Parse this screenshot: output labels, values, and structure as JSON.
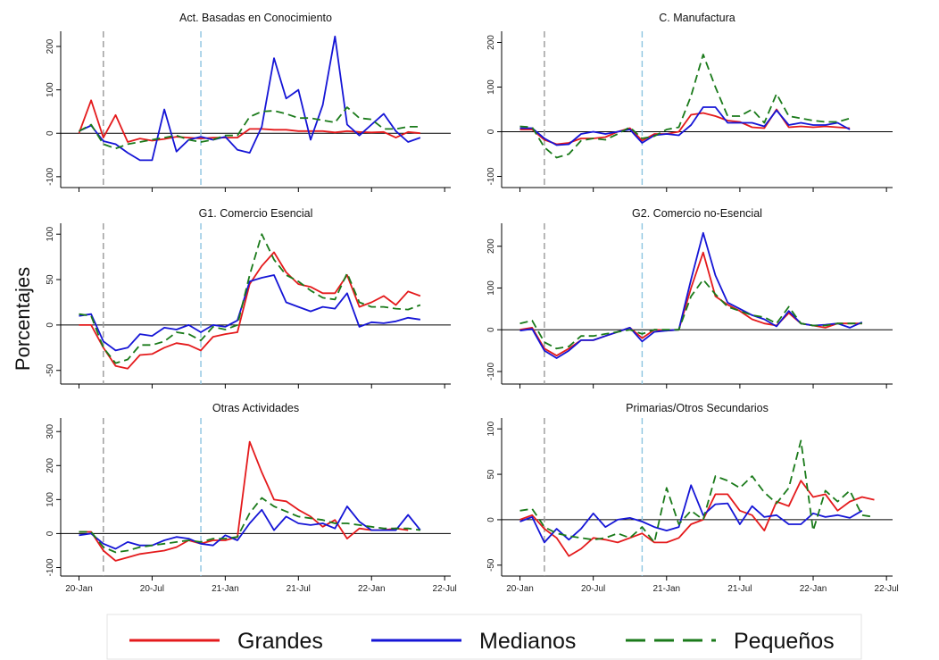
{
  "ylabel": "Porcentajes",
  "x_tick_labels": [
    "20-Jan",
    "20-Jul",
    "21-Jan",
    "21-Jul",
    "22-Jan",
    "22-Jul"
  ],
  "legend": [
    {
      "name": "Grandes",
      "color": "#e41a1c",
      "dash": "solid"
    },
    {
      "name": "Medianos",
      "color": "#1515d6",
      "dash": "solid"
    },
    {
      "name": "Pequeños",
      "color": "#1a7a1a",
      "dash": "dashed"
    }
  ],
  "reference_lines": [
    {
      "x": "2020-03",
      "color": "#999999",
      "style": "dashed"
    },
    {
      "x": "2020-11",
      "color": "#8cc4e0",
      "style": "dashed"
    }
  ],
  "chart_data": [
    {
      "type": "line",
      "title": "Act. Basadas en Conocimiento",
      "x_start": "2020-01",
      "x_step": "month",
      "yticks": [
        -100,
        0,
        100,
        200
      ],
      "ylim": [
        -125,
        235
      ],
      "series": [
        {
          "name": "Grandes",
          "values": [
            0,
            76,
            -10,
            42,
            -20,
            -12,
            -17,
            -13,
            -8,
            -10,
            -12,
            -10,
            -10,
            -10,
            10,
            10,
            8,
            8,
            5,
            5,
            5,
            2,
            5,
            3,
            2,
            3,
            -10,
            3,
            0
          ]
        },
        {
          "name": "Medianos",
          "values": [
            5,
            18,
            -18,
            -25,
            -45,
            -62,
            -62,
            55,
            -42,
            -15,
            -8,
            -15,
            -8,
            -38,
            -45,
            15,
            173,
            80,
            100,
            -15,
            65,
            223,
            20,
            -5,
            20,
            45,
            5,
            -20,
            -10
          ]
        },
        {
          "name": "Pequeños",
          "values": [
            5,
            20,
            -25,
            -35,
            -25,
            -20,
            -15,
            -10,
            -5,
            -15,
            -20,
            -15,
            -5,
            -5,
            38,
            50,
            52,
            45,
            35,
            35,
            30,
            25,
            60,
            35,
            32,
            10,
            10,
            15,
            15
          ]
        }
      ]
    },
    {
      "type": "line",
      "title": "C. Manufactura",
      "x_start": "2020-01",
      "x_step": "month",
      "yticks": [
        -100,
        0,
        100,
        200
      ],
      "ylim": [
        -125,
        225
      ],
      "series": [
        {
          "name": "Grandes",
          "values": [
            5,
            5,
            -18,
            -28,
            -25,
            -15,
            -15,
            -12,
            0,
            8,
            -20,
            -5,
            -5,
            0,
            38,
            42,
            35,
            25,
            22,
            10,
            8,
            50,
            10,
            12,
            10,
            12,
            10,
            8
          ]
        },
        {
          "name": "Medianos",
          "values": [
            8,
            8,
            -15,
            -30,
            -28,
            -5,
            0,
            -5,
            0,
            5,
            -25,
            -8,
            -5,
            -8,
            15,
            55,
            55,
            20,
            20,
            20,
            12,
            48,
            15,
            20,
            15,
            15,
            20,
            5
          ]
        },
        {
          "name": "Pequeños",
          "values": [
            12,
            10,
            -35,
            -58,
            -50,
            -20,
            -15,
            -18,
            -5,
            10,
            -15,
            -10,
            5,
            10,
            80,
            173,
            100,
            35,
            35,
            50,
            20,
            85,
            35,
            30,
            25,
            22,
            22,
            30
          ]
        }
      ]
    },
    {
      "type": "line",
      "title": "G1. Comercio Esencial",
      "x_start": "2020-01",
      "x_step": "month",
      "yticks": [
        -50,
        0,
        50,
        100
      ],
      "ylim": [
        -65,
        112
      ],
      "series": [
        {
          "name": "Grandes",
          "values": [
            0,
            0,
            -25,
            -45,
            -48,
            -33,
            -32,
            -25,
            -20,
            -22,
            -28,
            -13,
            -10,
            -8,
            45,
            65,
            80,
            58,
            45,
            42,
            35,
            35,
            55,
            20,
            25,
            32,
            22,
            37,
            32
          ]
        },
        {
          "name": "Medianos",
          "values": [
            10,
            12,
            -18,
            -28,
            -25,
            -10,
            -12,
            -3,
            -5,
            0,
            -8,
            0,
            -2,
            5,
            48,
            52,
            55,
            25,
            20,
            15,
            20,
            18,
            35,
            -2,
            3,
            2,
            4,
            8,
            6
          ]
        },
        {
          "name": "Pequeños",
          "values": [
            12,
            10,
            -25,
            -42,
            -38,
            -22,
            -22,
            -18,
            -8,
            -10,
            -17,
            -2,
            -5,
            0,
            55,
            100,
            72,
            55,
            48,
            38,
            30,
            28,
            57,
            25,
            20,
            20,
            18,
            17,
            22
          ]
        }
      ]
    },
    {
      "type": "line",
      "title": "G2. Comercio no-Esencial",
      "x_start": "2020-01",
      "x_step": "month",
      "yticks": [
        -100,
        0,
        100,
        200
      ],
      "ylim": [
        -130,
        255
      ],
      "series": [
        {
          "name": "Grandes",
          "values": [
            0,
            5,
            -45,
            -62,
            -45,
            -25,
            -25,
            -15,
            -5,
            5,
            -20,
            0,
            -2,
            0,
            100,
            185,
            80,
            60,
            45,
            25,
            15,
            10,
            40,
            15,
            10,
            5,
            15,
            15,
            15
          ]
        },
        {
          "name": "Medianos",
          "values": [
            -2,
            2,
            -50,
            -68,
            -50,
            -25,
            -25,
            -15,
            -5,
            5,
            -28,
            -5,
            -2,
            0,
            120,
            232,
            130,
            65,
            50,
            35,
            25,
            8,
            45,
            15,
            10,
            12,
            15,
            5,
            18
          ]
        },
        {
          "name": "Pequeños",
          "values": [
            15,
            22,
            -30,
            -45,
            -40,
            -15,
            -15,
            -10,
            -5,
            0,
            -10,
            0,
            0,
            0,
            80,
            120,
            85,
            55,
            45,
            35,
            30,
            15,
            55,
            15,
            10,
            10,
            15,
            15,
            15
          ]
        }
      ]
    },
    {
      "type": "line",
      "title": "Otras Actividades",
      "x_start": "2020-01",
      "x_step": "month",
      "yticks": [
        -100,
        0,
        100,
        200,
        300
      ],
      "ylim": [
        -125,
        340
      ],
      "series": [
        {
          "name": "Grandes",
          "values": [
            5,
            5,
            -50,
            -80,
            -70,
            -60,
            -55,
            -50,
            -40,
            -20,
            -30,
            -20,
            -20,
            -10,
            270,
            180,
            100,
            95,
            70,
            50,
            20,
            40,
            -15,
            15,
            10,
            10,
            15,
            10
          ]
        },
        {
          "name": "Medianos",
          "values": [
            -5,
            0,
            -30,
            -45,
            -25,
            -35,
            -35,
            -20,
            -10,
            -15,
            -30,
            -35,
            -5,
            -20,
            30,
            70,
            10,
            50,
            30,
            25,
            30,
            15,
            80,
            35,
            10,
            10,
            10,
            55,
            10
          ]
        },
        {
          "name": "Pequeños",
          "values": [
            5,
            5,
            -40,
            -55,
            -50,
            -40,
            -35,
            -30,
            -25,
            -20,
            -25,
            -15,
            -15,
            -10,
            60,
            105,
            80,
            65,
            50,
            45,
            40,
            30,
            30,
            25,
            20,
            15,
            15,
            15,
            10
          ]
        }
      ]
    },
    {
      "type": "line",
      "title": "Primarias/Otros Secundarios",
      "x_start": "2020-01",
      "x_step": "month",
      "yticks": [
        -50,
        0,
        50,
        100
      ],
      "ylim": [
        -62,
        112
      ],
      "series": [
        {
          "name": "Grandes",
          "values": [
            0,
            5,
            -10,
            -20,
            -40,
            -32,
            -20,
            -22,
            -25,
            -20,
            -15,
            -25,
            -25,
            -20,
            -5,
            0,
            28,
            28,
            10,
            5,
            -12,
            20,
            15,
            43,
            25,
            28,
            10,
            20,
            25,
            22
          ]
        },
        {
          "name": "Medianos",
          "values": [
            -2,
            3,
            -25,
            -10,
            -22,
            -10,
            7,
            -8,
            0,
            2,
            -2,
            -8,
            -12,
            -8,
            38,
            5,
            17,
            18,
            -5,
            15,
            3,
            5,
            -5,
            -5,
            7,
            3,
            5,
            2,
            10
          ]
        },
        {
          "name": "Pequeños",
          "values": [
            10,
            12,
            -8,
            -15,
            -18,
            -20,
            -22,
            -20,
            -15,
            -20,
            -8,
            -25,
            35,
            -5,
            10,
            0,
            48,
            43,
            35,
            48,
            30,
            18,
            35,
            87,
            -12,
            32,
            20,
            32,
            5,
            3
          ]
        }
      ]
    }
  ]
}
